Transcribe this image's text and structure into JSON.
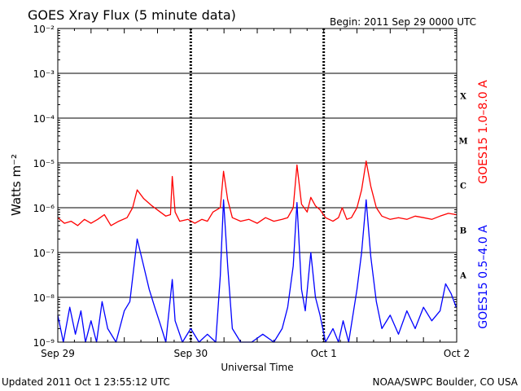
{
  "header": {
    "title": "GOES Xray Flux (5 minute data)",
    "begin": "Begin:  2011 Sep 29 0000 UTC"
  },
  "footer": {
    "updated": "Updated 2011 Oct  1 23:55:12 UTC",
    "credit": "NOAA/SWPC Boulder, CO USA"
  },
  "chart_data": {
    "type": "line",
    "ylabel": "Watts m⁻²",
    "xlabel": "Universal Time",
    "y_scale": "log",
    "ylim": [
      1e-09,
      0.01
    ],
    "xlim": [
      "2011-09-29T00:00",
      "2011-10-02T00:00"
    ],
    "x_ticks": [
      "Sep 29",
      "Sep 30",
      "Oct 1",
      "Oct 2"
    ],
    "y_ticks": [
      "10⁻⁹",
      "10⁻⁸",
      "10⁻⁷",
      "10⁻⁶",
      "10⁻⁵",
      "10⁻⁴",
      "10⁻³",
      "10⁻²"
    ],
    "flare_classes": [
      {
        "label": "A",
        "level": 1e-08
      },
      {
        "label": "B",
        "level": 1e-07
      },
      {
        "label": "C",
        "level": 1e-06
      },
      {
        "label": "M",
        "level": 1e-05
      },
      {
        "label": "X",
        "level": 0.0001
      }
    ],
    "grid": "horizontal at each decade; dashed vertical at day boundaries",
    "series": [
      {
        "name": "GOES15 1.0–8.0 A",
        "color": "#ff0000",
        "points": [
          [
            "2011-09-29T00:00",
            6e-07
          ],
          [
            "2011-09-29T01:12",
            4.5e-07
          ],
          [
            "2011-09-29T02:24",
            5e-07
          ],
          [
            "2011-09-29T03:36",
            4e-07
          ],
          [
            "2011-09-29T04:48",
            5.5e-07
          ],
          [
            "2011-09-29T06:00",
            4.5e-07
          ],
          [
            "2011-09-29T07:12",
            5.5e-07
          ],
          [
            "2011-09-29T08:24",
            7e-07
          ],
          [
            "2011-09-29T09:36",
            4e-07
          ],
          [
            "2011-09-29T11:00",
            5e-07
          ],
          [
            "2011-09-29T12:30",
            6e-07
          ],
          [
            "2011-09-29T13:30",
            1e-06
          ],
          [
            "2011-09-29T14:20",
            2.5e-06
          ],
          [
            "2011-09-29T15:30",
            1.6e-06
          ],
          [
            "2011-09-29T17:00",
            1.1e-06
          ],
          [
            "2011-09-29T18:30",
            8e-07
          ],
          [
            "2011-09-29T19:30",
            6.5e-07
          ],
          [
            "2011-09-29T20:20",
            7e-07
          ],
          [
            "2011-09-29T20:40",
            5e-06
          ],
          [
            "2011-09-29T21:10",
            8e-07
          ],
          [
            "2011-09-29T22:00",
            5e-07
          ],
          [
            "2011-09-29T23:30",
            5.5e-07
          ],
          [
            "2011-09-30T00:45",
            4.5e-07
          ],
          [
            "2011-09-30T02:00",
            5.5e-07
          ],
          [
            "2011-09-30T03:00",
            5e-07
          ],
          [
            "2011-09-30T04:00",
            8e-07
          ],
          [
            "2011-09-30T05:20",
            1e-06
          ],
          [
            "2011-09-30T05:55",
            6.5e-06
          ],
          [
            "2011-09-30T06:40",
            1.5e-06
          ],
          [
            "2011-09-30T07:30",
            6e-07
          ],
          [
            "2011-09-30T09:00",
            5e-07
          ],
          [
            "2011-09-30T10:30",
            5.5e-07
          ],
          [
            "2011-09-30T12:00",
            4.5e-07
          ],
          [
            "2011-09-30T13:30",
            6e-07
          ],
          [
            "2011-09-30T15:00",
            5e-07
          ],
          [
            "2011-09-30T16:30",
            5.5e-07
          ],
          [
            "2011-09-30T17:30",
            6e-07
          ],
          [
            "2011-09-30T18:30",
            1e-06
          ],
          [
            "2011-09-30T19:10",
            9e-06
          ],
          [
            "2011-09-30T20:00",
            1.2e-06
          ],
          [
            "2011-09-30T21:00",
            8e-07
          ],
          [
            "2011-09-30T21:40",
            1.7e-06
          ],
          [
            "2011-09-30T22:30",
            1.1e-06
          ],
          [
            "2011-09-30T23:20",
            9e-07
          ],
          [
            "2011-10-01T00:20",
            6e-07
          ],
          [
            "2011-10-01T01:40",
            5e-07
          ],
          [
            "2011-10-01T02:40",
            6e-07
          ],
          [
            "2011-10-01T03:20",
            1e-06
          ],
          [
            "2011-10-01T04:10",
            5.5e-07
          ],
          [
            "2011-10-01T05:00",
            6e-07
          ],
          [
            "2011-10-01T06:00",
            1e-06
          ],
          [
            "2011-10-01T06:50",
            2.5e-06
          ],
          [
            "2011-10-01T07:40",
            1.1e-05
          ],
          [
            "2011-10-01T08:30",
            3e-06
          ],
          [
            "2011-10-01T09:30",
            1e-06
          ],
          [
            "2011-10-01T10:30",
            6.5e-07
          ],
          [
            "2011-10-01T12:00",
            5.5e-07
          ],
          [
            "2011-10-01T13:30",
            6e-07
          ],
          [
            "2011-10-01T15:00",
            5.5e-07
          ],
          [
            "2011-10-01T16:30",
            6.5e-07
          ],
          [
            "2011-10-01T18:00",
            6e-07
          ],
          [
            "2011-10-01T19:30",
            5.5e-07
          ],
          [
            "2011-10-01T21:00",
            6.5e-07
          ],
          [
            "2011-10-01T22:30",
            7.5e-07
          ],
          [
            "2011-10-01T23:55",
            7e-07
          ]
        ]
      },
      {
        "name": "GOES15 0.5–4.0 A",
        "color": "#0000ff",
        "points": [
          [
            "2011-09-29T00:00",
            4e-09
          ],
          [
            "2011-09-29T01:00",
            1e-09
          ],
          [
            "2011-09-29T02:10",
            6e-09
          ],
          [
            "2011-09-29T03:10",
            1.5e-09
          ],
          [
            "2011-09-29T04:10",
            5e-09
          ],
          [
            "2011-09-29T05:00",
            1e-09
          ],
          [
            "2011-09-29T06:00",
            3e-09
          ],
          [
            "2011-09-29T07:00",
            1e-09
          ],
          [
            "2011-09-29T08:00",
            8e-09
          ],
          [
            "2011-09-29T09:00",
            2e-09
          ],
          [
            "2011-09-29T10:30",
            1e-09
          ],
          [
            "2011-09-29T12:00",
            5e-09
          ],
          [
            "2011-09-29T13:00",
            8e-09
          ],
          [
            "2011-09-29T14:20",
            2e-07
          ],
          [
            "2011-09-29T15:30",
            5e-08
          ],
          [
            "2011-09-29T16:30",
            1.5e-08
          ],
          [
            "2011-09-29T17:30",
            6e-09
          ],
          [
            "2011-09-29T18:30",
            2.5e-09
          ],
          [
            "2011-09-29T19:30",
            1e-09
          ],
          [
            "2011-09-29T20:40",
            2.5e-08
          ],
          [
            "2011-09-29T21:10",
            3e-09
          ],
          [
            "2011-09-29T22:30",
            1e-09
          ],
          [
            "2011-09-30T00:00",
            2e-09
          ],
          [
            "2011-09-30T01:30",
            1e-09
          ],
          [
            "2011-09-30T03:00",
            1.5e-09
          ],
          [
            "2011-09-30T04:30",
            1e-09
          ],
          [
            "2011-09-30T05:20",
            3e-08
          ],
          [
            "2011-09-30T05:55",
            1.5e-06
          ],
          [
            "2011-09-30T06:40",
            5e-08
          ],
          [
            "2011-09-30T07:30",
            2e-09
          ],
          [
            "2011-09-30T09:00",
            1e-09
          ],
          [
            "2011-09-30T11:00",
            1e-09
          ],
          [
            "2011-09-30T13:00",
            1.5e-09
          ],
          [
            "2011-09-30T15:00",
            1e-09
          ],
          [
            "2011-09-30T16:30",
            2e-09
          ],
          [
            "2011-09-30T17:30",
            6e-09
          ],
          [
            "2011-09-30T18:30",
            5e-08
          ],
          [
            "2011-09-30T19:10",
            1.3e-06
          ],
          [
            "2011-09-30T20:00",
            1.5e-08
          ],
          [
            "2011-09-30T20:40",
            5e-09
          ],
          [
            "2011-09-30T21:40",
            1e-07
          ],
          [
            "2011-09-30T22:30",
            1e-08
          ],
          [
            "2011-09-30T23:20",
            4e-09
          ],
          [
            "2011-10-01T00:20",
            1e-09
          ],
          [
            "2011-10-01T01:40",
            2e-09
          ],
          [
            "2011-10-01T02:40",
            1e-09
          ],
          [
            "2011-10-01T03:30",
            3e-09
          ],
          [
            "2011-10-01T04:30",
            1e-09
          ],
          [
            "2011-10-01T06:00",
            1.5e-08
          ],
          [
            "2011-10-01T06:50",
            1e-07
          ],
          [
            "2011-10-01T07:40",
            1.5e-06
          ],
          [
            "2011-10-01T08:30",
            8e-08
          ],
          [
            "2011-10-01T09:30",
            8e-09
          ],
          [
            "2011-10-01T10:30",
            2e-09
          ],
          [
            "2011-10-01T12:00",
            4e-09
          ],
          [
            "2011-10-01T13:30",
            1.5e-09
          ],
          [
            "2011-10-01T15:00",
            5e-09
          ],
          [
            "2011-10-01T16:30",
            2e-09
          ],
          [
            "2011-10-01T18:00",
            6e-09
          ],
          [
            "2011-10-01T19:30",
            3e-09
          ],
          [
            "2011-10-01T21:00",
            5e-09
          ],
          [
            "2011-10-01T22:00",
            2e-08
          ],
          [
            "2011-10-01T23:00",
            1.2e-08
          ],
          [
            "2011-10-01T23:55",
            6e-09
          ]
        ]
      }
    ]
  }
}
